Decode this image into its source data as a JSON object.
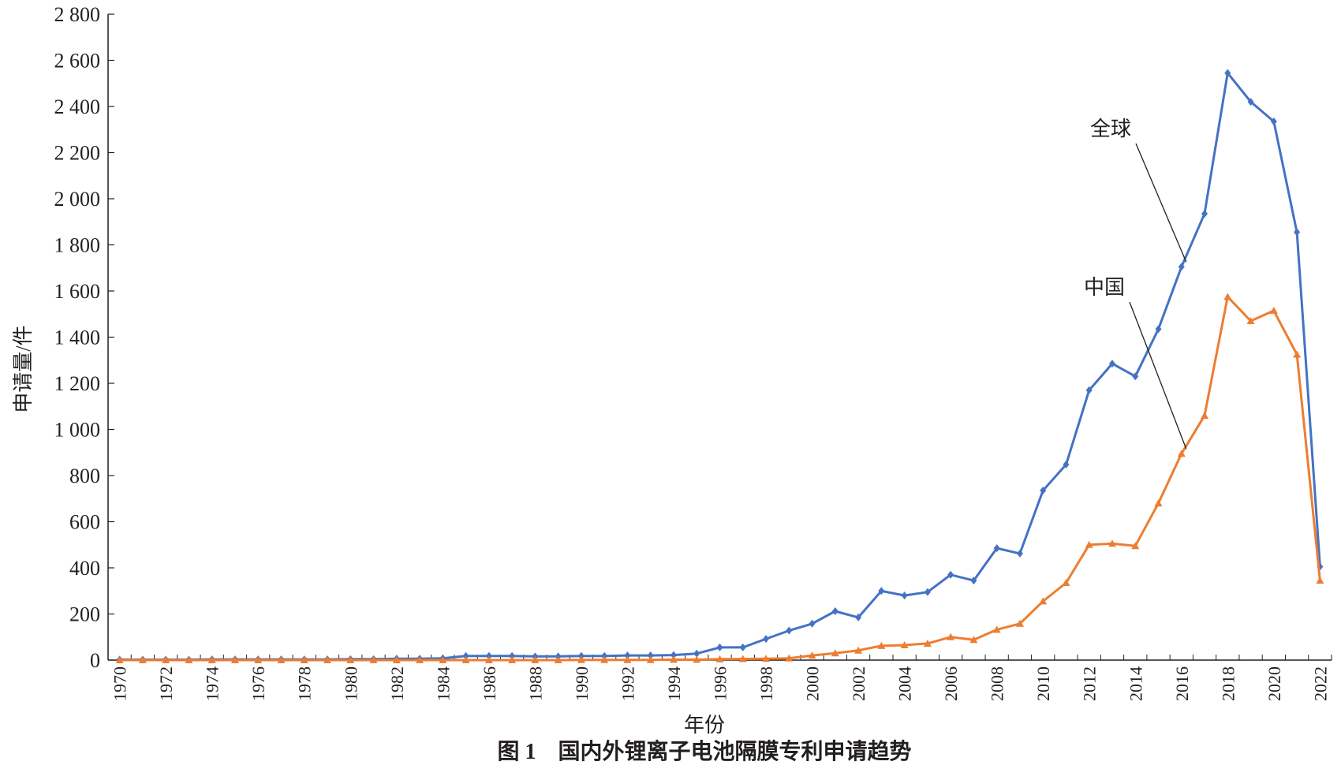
{
  "chart_data": {
    "type": "line",
    "xlabel": "年份",
    "ylabel": "申请量/件",
    "caption": "图 1　国内外锂离子电池隔膜专利申请趋势",
    "xlim": [
      1969.5,
      2022.5
    ],
    "ylim": [
      0,
      2800
    ],
    "ytick_values": [
      0,
      200,
      400,
      600,
      800,
      1000,
      1200,
      1400,
      1600,
      1800,
      2000,
      2200,
      2400,
      2600,
      2800
    ],
    "ytick_labels": [
      "0",
      "200",
      "400",
      "600",
      "800",
      "1 000",
      "1 200",
      "1 400",
      "1 600",
      "1 800",
      "2 000",
      "2 200",
      "2 400",
      "2 600",
      "2 800"
    ],
    "xtick_labels": [
      "1970",
      "1972",
      "1974",
      "1976",
      "1978",
      "1980",
      "1982",
      "1984",
      "1986",
      "1988",
      "1990",
      "1992",
      "1994",
      "1996",
      "1998",
      "2000",
      "2002",
      "2004",
      "2006",
      "2008",
      "2010",
      "2012",
      "2014",
      "2016",
      "2018",
      "2020",
      "2022"
    ],
    "x": [
      1970,
      1971,
      1972,
      1973,
      1974,
      1975,
      1976,
      1977,
      1978,
      1979,
      1980,
      1981,
      1982,
      1983,
      1984,
      1985,
      1986,
      1987,
      1988,
      1989,
      1990,
      1991,
      1992,
      1993,
      1994,
      1995,
      1996,
      1997,
      1998,
      1999,
      2000,
      2001,
      2002,
      2003,
      2004,
      2005,
      2006,
      2007,
      2008,
      2009,
      2010,
      2011,
      2012,
      2013,
      2014,
      2015,
      2016,
      2017,
      2018,
      2019,
      2020,
      2021,
      2022
    ],
    "grid": false,
    "legend": "none",
    "series": [
      {
        "name": "全球",
        "color": "#4472c4",
        "marker": "diamond",
        "values": [
          2,
          2,
          2,
          2,
          3,
          3,
          3,
          3,
          3,
          3,
          4,
          4,
          6,
          6,
          8,
          18,
          18,
          18,
          16,
          16,
          18,
          18,
          20,
          20,
          22,
          28,
          55,
          55,
          92,
          128,
          158,
          212,
          185,
          300,
          280,
          295,
          370,
          345,
          485,
          462,
          735,
          848,
          1170,
          1285,
          1230,
          1435,
          1705,
          1935,
          2545,
          2420,
          2335,
          1855,
          405
        ]
      },
      {
        "name": "中国",
        "color": "#ed7d31",
        "marker": "triangle",
        "values": [
          0,
          0,
          0,
          0,
          0,
          0,
          0,
          0,
          0,
          0,
          0,
          0,
          0,
          0,
          0,
          0,
          0,
          0,
          0,
          0,
          1,
          1,
          1,
          1,
          2,
          2,
          4,
          5,
          6,
          8,
          20,
          30,
          42,
          62,
          65,
          72,
          100,
          88,
          132,
          158,
          255,
          335,
          500,
          505,
          495,
          680,
          895,
          1060,
          1575,
          1470,
          1515,
          1325,
          345
        ]
      }
    ]
  }
}
